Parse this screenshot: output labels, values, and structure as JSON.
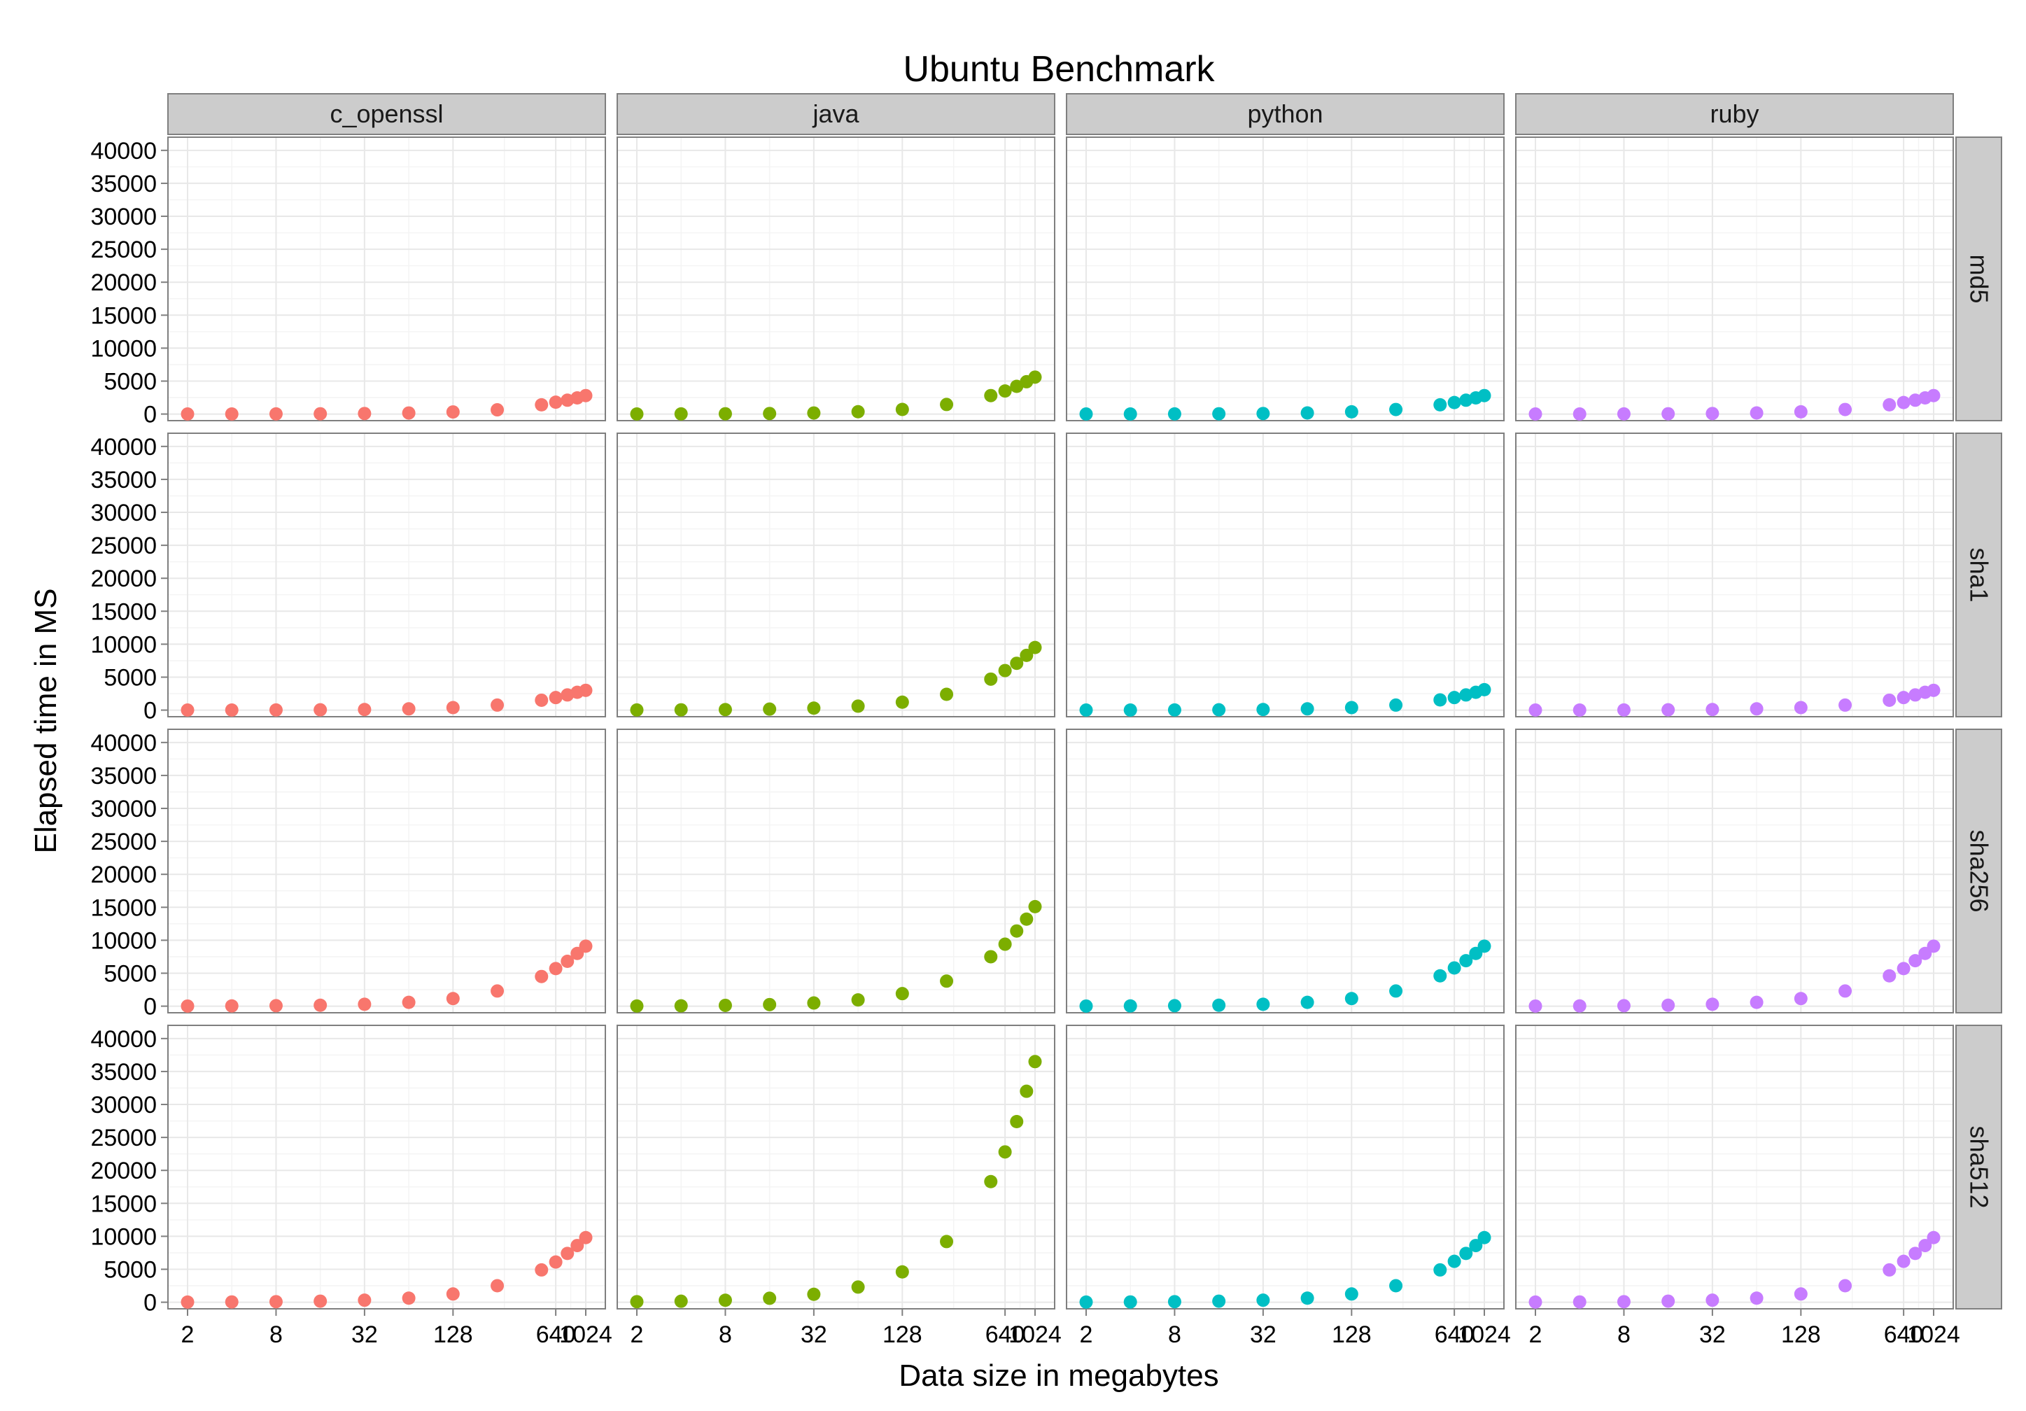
{
  "chart_data": {
    "type": "scatter",
    "title": "Ubuntu Benchmark",
    "xlabel": "Data size in megabytes",
    "ylabel": "Elapsed time in MS",
    "x_tick_labels": [
      "2",
      "8",
      "32",
      "128",
      "640",
      "1024"
    ],
    "x_tick_positions": [
      2,
      8,
      32,
      128,
      640,
      1024
    ],
    "x_categories": [
      2,
      4,
      8,
      16,
      32,
      64,
      128,
      256,
      512,
      640,
      768,
      896,
      1024
    ],
    "y_ticks": [
      0,
      5000,
      10000,
      15000,
      20000,
      25000,
      30000,
      35000,
      40000
    ],
    "y_tick_labels": [
      "0",
      "5000",
      "10000",
      "15000",
      "20000",
      "25000",
      "30000",
      "35000",
      "40000"
    ],
    "ylim": [
      -1000,
      42000
    ],
    "grid": true,
    "columns": [
      "c_openssl",
      "java",
      "python",
      "ruby"
    ],
    "rows": [
      "md5",
      "sha1",
      "sha256",
      "sha512"
    ],
    "colors": {
      "c_openssl": "#F8766D",
      "java": "#7CAE00",
      "python": "#00BFC4",
      "ruby": "#C77CFF"
    },
    "series": [
      {
        "row": "md5",
        "column": "c_openssl",
        "values": [
          5,
          10,
          20,
          40,
          80,
          160,
          320,
          640,
          1400,
          1800,
          2100,
          2450,
          2800
        ]
      },
      {
        "row": "md5",
        "column": "java",
        "values": [
          10,
          20,
          40,
          80,
          160,
          350,
          700,
          1450,
          2800,
          3500,
          4200,
          4900,
          5600
        ]
      },
      {
        "row": "md5",
        "column": "python",
        "values": [
          5,
          10,
          20,
          40,
          80,
          170,
          340,
          690,
          1400,
          1750,
          2100,
          2450,
          2800
        ]
      },
      {
        "row": "md5",
        "column": "ruby",
        "values": [
          5,
          10,
          20,
          40,
          80,
          170,
          340,
          690,
          1400,
          1750,
          2100,
          2450,
          2800
        ]
      },
      {
        "row": "sha1",
        "column": "c_openssl",
        "values": [
          5,
          10,
          20,
          45,
          90,
          190,
          380,
          760,
          1500,
          1900,
          2300,
          2700,
          3000
        ]
      },
      {
        "row": "sha1",
        "column": "java",
        "values": [
          20,
          40,
          75,
          150,
          300,
          600,
          1200,
          2400,
          4700,
          6000,
          7100,
          8300,
          9500
        ]
      },
      {
        "row": "sha1",
        "column": "python",
        "values": [
          5,
          10,
          20,
          45,
          90,
          190,
          380,
          760,
          1550,
          1900,
          2300,
          2700,
          3100
        ]
      },
      {
        "row": "sha1",
        "column": "ruby",
        "values": [
          5,
          10,
          20,
          45,
          90,
          190,
          380,
          760,
          1500,
          1900,
          2300,
          2700,
          3000
        ]
      },
      {
        "row": "sha256",
        "column": "c_openssl",
        "values": [
          15,
          35,
          70,
          140,
          290,
          580,
          1150,
          2300,
          4500,
          5700,
          6800,
          8000,
          9100
        ]
      },
      {
        "row": "sha256",
        "column": "java",
        "values": [
          25,
          50,
          120,
          240,
          480,
          950,
          1900,
          3800,
          7500,
          9400,
          11400,
          13200,
          15100
        ]
      },
      {
        "row": "sha256",
        "column": "python",
        "values": [
          15,
          35,
          70,
          140,
          290,
          580,
          1150,
          2300,
          4600,
          5800,
          6900,
          8000,
          9100
        ]
      },
      {
        "row": "sha256",
        "column": "ruby",
        "values": [
          15,
          35,
          70,
          140,
          290,
          580,
          1150,
          2300,
          4600,
          5700,
          6900,
          8000,
          9100
        ]
      },
      {
        "row": "sha512",
        "column": "c_openssl",
        "values": [
          20,
          40,
          80,
          160,
          310,
          620,
          1250,
          2500,
          4900,
          6100,
          7400,
          8600,
          9800
        ]
      },
      {
        "row": "sha512",
        "column": "java",
        "values": [
          80,
          150,
          300,
          600,
          1200,
          2300,
          4600,
          9200,
          18300,
          22800,
          27400,
          32000,
          36500
        ]
      },
      {
        "row": "sha512",
        "column": "python",
        "values": [
          20,
          40,
          80,
          160,
          310,
          620,
          1250,
          2500,
          4900,
          6200,
          7400,
          8600,
          9800
        ]
      },
      {
        "row": "sha512",
        "column": "ruby",
        "values": [
          20,
          40,
          80,
          160,
          310,
          620,
          1250,
          2500,
          4900,
          6200,
          7400,
          8600,
          9800
        ]
      }
    ]
  }
}
